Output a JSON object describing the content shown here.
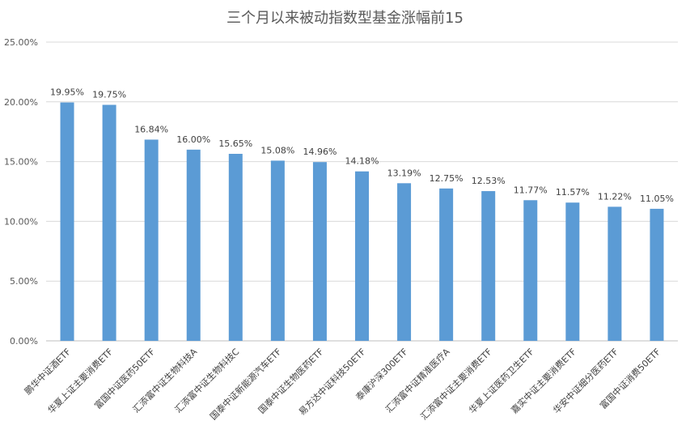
{
  "chart_data": {
    "type": "bar",
    "title": "三个月以来被动指数型基金涨幅前15",
    "xlabel": "",
    "ylabel": "",
    "ylim": [
      0,
      25
    ],
    "yticks": [
      "0.00%",
      "5.00%",
      "10.00%",
      "15.00%",
      "20.00%",
      "25.00%"
    ],
    "grid": true,
    "legend": "none",
    "bar_color": "#5b9bd5",
    "categories": [
      "鹏华中证酒ETF",
      "华夏上证主要消费ETF",
      "富国中证医药50ETF",
      "汇添富中证生物科技A",
      "汇添富中证生物科技C",
      "国泰中证新能源汽车ETF",
      "国泰中证生物医药ETF",
      "易方达中证科技50ETF",
      "泰康沪深300ETF",
      "汇添富中证精准医疗A",
      "汇添富中证主要消费ETF",
      "华夏上证医药卫生ETF",
      "嘉实中证主要消费ETF",
      "华安中证细分医药ETF",
      "富国中证消费50ETF"
    ],
    "values": [
      19.95,
      19.75,
      16.84,
      16.0,
      15.65,
      15.08,
      14.96,
      14.18,
      13.19,
      12.75,
      12.53,
      11.77,
      11.57,
      11.22,
      11.05
    ],
    "data_labels": [
      "19.95%",
      "19.75%",
      "16.84%",
      "16.00%",
      "15.65%",
      "15.08%",
      "14.96%",
      "14.18%",
      "13.19%",
      "12.75%",
      "12.53%",
      "11.77%",
      "11.57%",
      "11.22%",
      "11.05%"
    ]
  }
}
